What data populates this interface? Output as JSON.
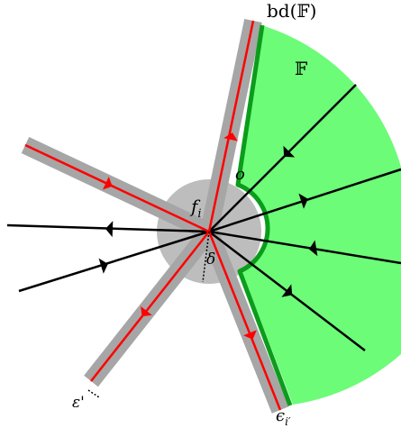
{
  "labels": {
    "boundary": "bd(𝔽)",
    "region": "𝔽",
    "vertex": "f",
    "vertex_sub": "i",
    "point_o": "o",
    "delta": "δ",
    "epsilon_prime": "ε'",
    "epsilon_i": "ϵ",
    "epsilon_i_sub": "i′"
  },
  "colors": {
    "region_fill": "#6cfc78",
    "region_outline": "#0c9c1c",
    "tube": "#a6a6a6",
    "disk": "#bdbdbd",
    "edge": "#ff0000",
    "ray": "#000000"
  }
}
